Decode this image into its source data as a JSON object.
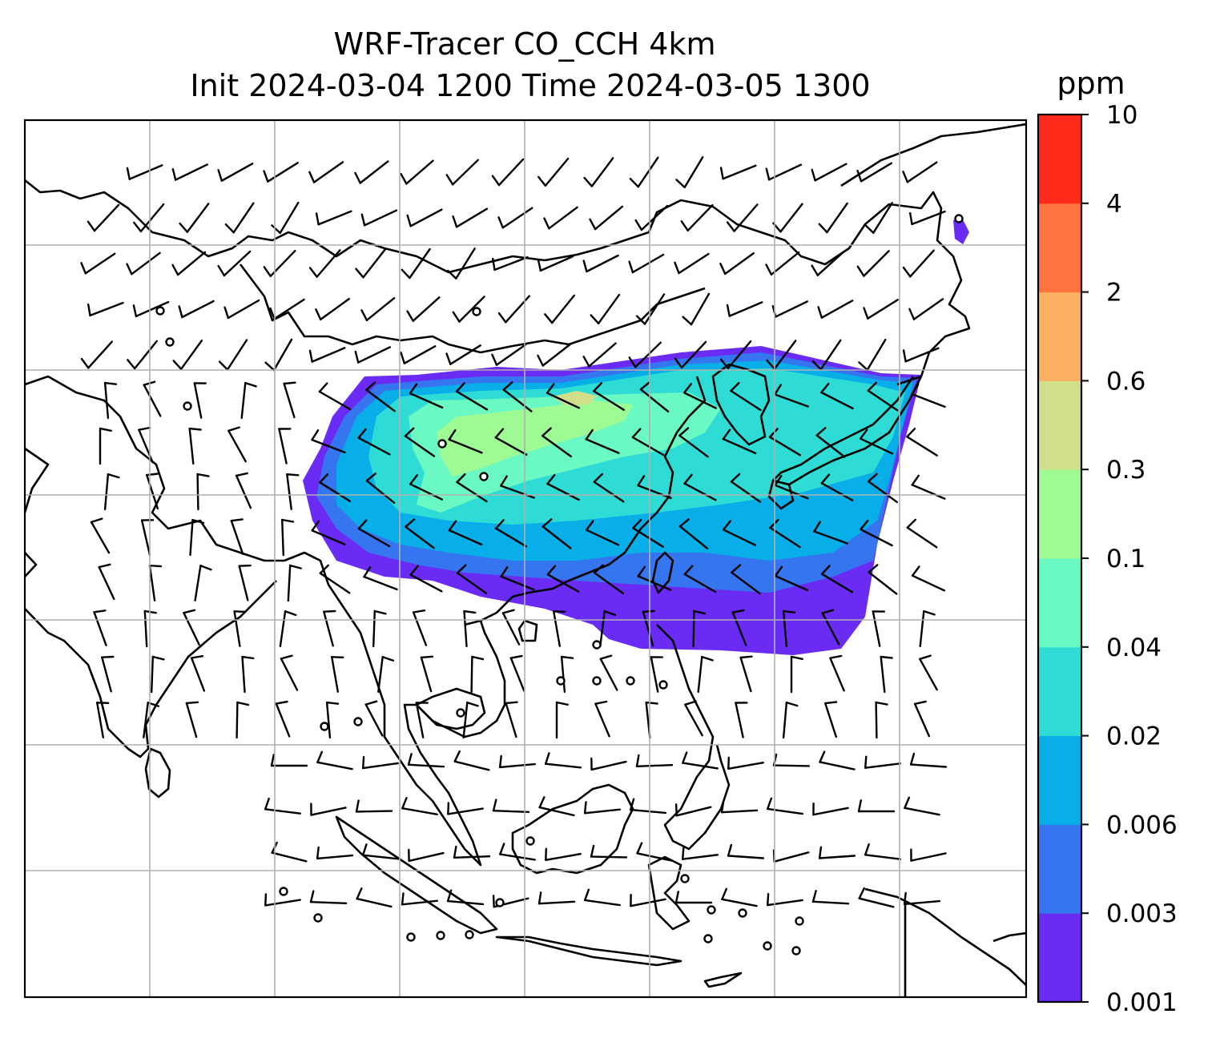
{
  "title": {
    "line1": "WRF-Tracer CO_CCH 4km",
    "line2": "Init 2024-03-04 1200 Time 2024-03-05 1300"
  },
  "colorbar": {
    "unit": "ppm",
    "levels": [
      "0.001",
      "0.003",
      "0.006",
      "0.02",
      "0.04",
      "0.1",
      "0.3",
      "0.6",
      "2",
      "4",
      "10"
    ],
    "colors": [
      "#6a2bf5",
      "#3575ef",
      "#08aee8",
      "#2fdcd5",
      "#6af8c3",
      "#9efb94",
      "#d0e08a",
      "#fcb062",
      "#ff7340",
      "#ff2a1a"
    ]
  },
  "map": {
    "grid": true,
    "coastline_color": "#000000",
    "gridline_color": "#b0b0b0"
  }
}
